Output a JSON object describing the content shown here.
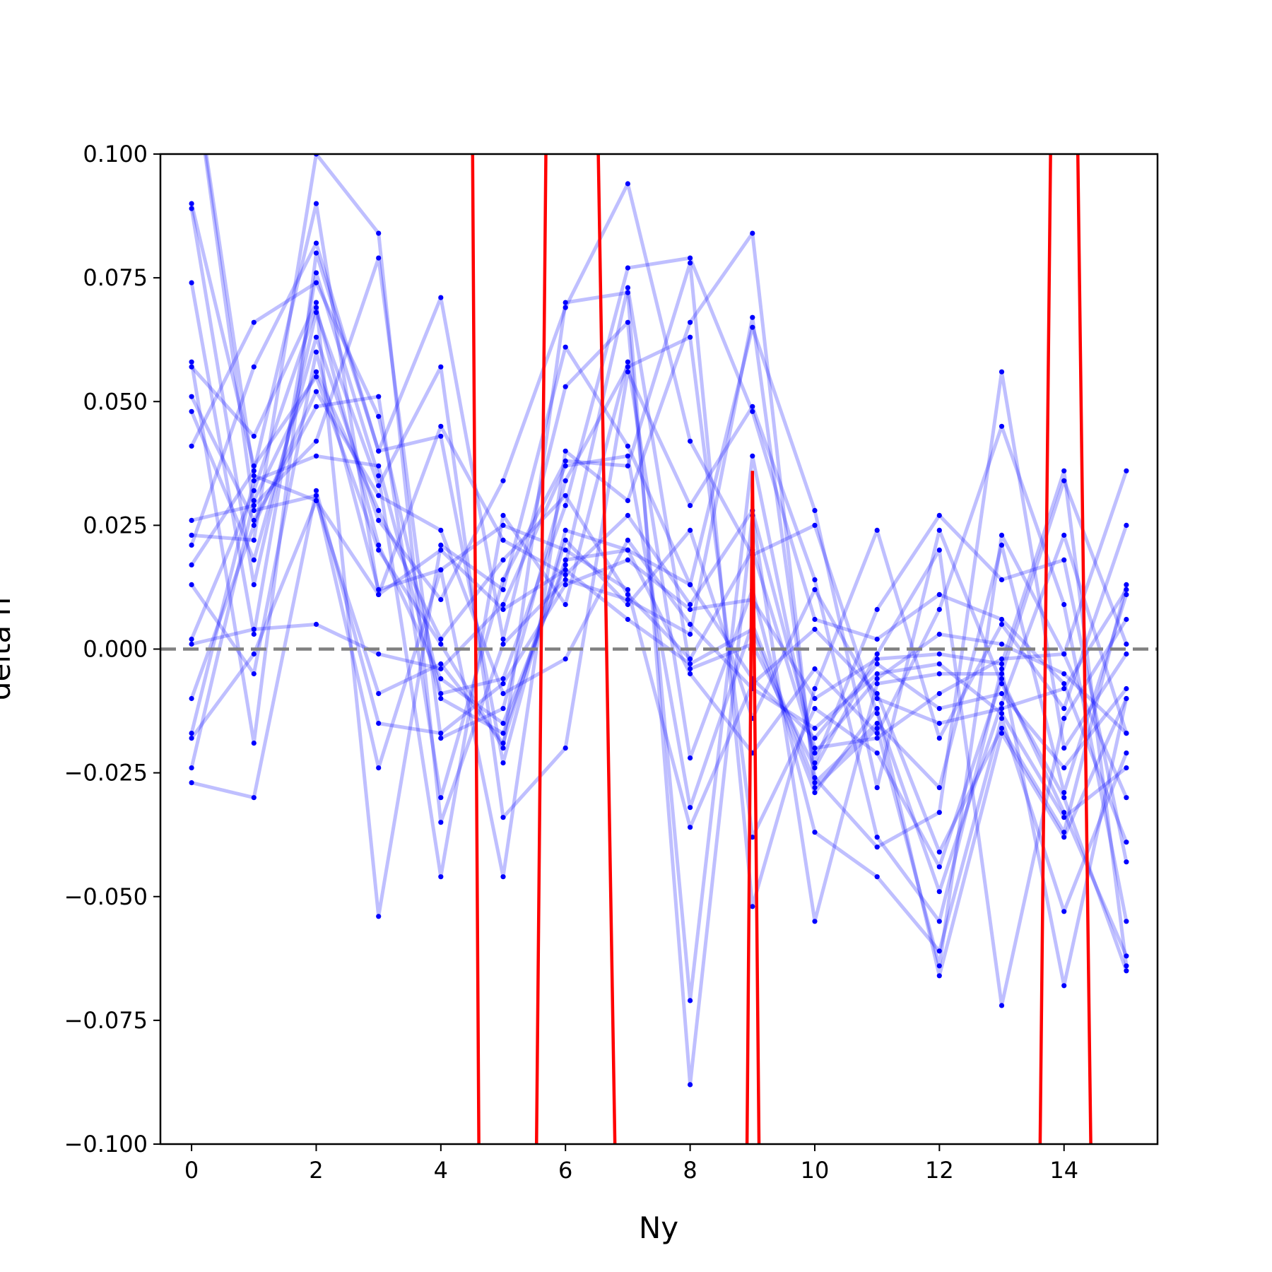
{
  "chart_data": {
    "type": "line",
    "xlabel": "Ny",
    "ylabel": "delta n",
    "xlim": [
      -0.5,
      15.5
    ],
    "ylim": [
      -0.1,
      0.1
    ],
    "x_ticks": [
      0,
      2,
      4,
      6,
      8,
      10,
      12,
      14
    ],
    "x_tick_labels": [
      "0",
      "2",
      "4",
      "6",
      "8",
      "10",
      "12",
      "14"
    ],
    "y_ticks": [
      -0.1,
      -0.075,
      -0.05,
      -0.025,
      0.0,
      0.025,
      0.05,
      0.075,
      0.1
    ],
    "y_tick_labels": [
      "−0.100",
      "−0.075",
      "−0.050",
      "−0.025",
      "0.000",
      "0.025",
      "0.050",
      "0.075",
      "0.100"
    ],
    "grid": false,
    "reference_line": {
      "y": 0.0,
      "style": "dashed",
      "color": "#808080"
    },
    "colors": {
      "series": "#0000ff",
      "highlight": "#ff0000",
      "reference": "#808080"
    },
    "x": [
      0,
      1,
      2,
      3,
      4,
      5,
      6,
      7,
      8,
      9,
      10,
      11,
      12,
      13,
      14,
      15
    ],
    "series": [
      {
        "values": [
          0.12,
          0.028,
          0.031,
          -0.024,
          0.016,
          -0.046,
          0.04,
          0.03,
          0.066,
          0.084,
          -0.028,
          -0.016,
          -0.064,
          0.023,
          -0.001,
          0.036
        ]
      },
      {
        "values": [
          0.09,
          0.037,
          0.055,
          0.02,
          0.001,
          -0.02,
          0.07,
          0.072,
          -0.088,
          0.027,
          -0.055,
          -0.007,
          -0.005,
          -0.005,
          0.034,
          0.001
        ]
      },
      {
        "values": [
          0.089,
          0.013,
          0.068,
          0.033,
          0.057,
          -0.034,
          -0.02,
          0.056,
          0.029,
          0.049,
          0.014,
          -0.038,
          -0.055,
          -0.004,
          -0.068,
          -0.01
        ]
      },
      {
        "values": [
          0.074,
          0.003,
          0.076,
          0.035,
          -0.046,
          0.027,
          0.009,
          0.058,
          -0.022,
          0.012,
          -0.037,
          -0.046,
          -0.061,
          -0.014,
          -0.053,
          -0.021
        ]
      },
      {
        "values": [
          0.058,
          -0.019,
          0.08,
          0.04,
          0.071,
          0.002,
          0.053,
          0.066,
          -0.071,
          0.039,
          -0.023,
          0.008,
          0.027,
          0.014,
          0.018,
          -0.043
        ]
      },
      {
        "values": [
          0.057,
          0.043,
          0.07,
          -0.054,
          0.021,
          0.012,
          0.061,
          0.041,
          0.013,
          0.065,
          0.028,
          -0.028,
          0.024,
          -0.007,
          -0.03,
          -0.065
        ]
      },
      {
        "values": [
          0.051,
          0.026,
          0.049,
          0.051,
          -0.03,
          0.014,
          0.038,
          0.037,
          0.078,
          -0.052,
          -0.008,
          0.024,
          -0.018,
          0.005,
          -0.012,
          0.025
        ]
      },
      {
        "values": [
          0.048,
          0.018,
          0.063,
          0.026,
          0.01,
          0.034,
          0.069,
          0.094,
          0.042,
          0.019,
          0.025,
          -0.013,
          -0.049,
          -0.011,
          0.023,
          -0.017
        ]
      },
      {
        "values": [
          0.041,
          0.066,
          0.074,
          0.047,
          -0.009,
          -0.006,
          0.029,
          0.077,
          0.079,
          0.048,
          0.006,
          0.002,
          0.011,
          0.006,
          -0.007,
          -0.039
        ]
      },
      {
        "values": [
          0.026,
          0.029,
          0.042,
          0.079,
          -0.018,
          -0.012,
          0.034,
          0.057,
          0.063,
          -0.038,
          -0.012,
          -0.021,
          -0.044,
          -0.006,
          -0.033,
          -0.062
        ]
      },
      {
        "values": [
          0.023,
          0.022,
          0.1,
          0.084,
          -0.035,
          0.001,
          0.014,
          0.01,
          0.003,
          0.067,
          -0.026,
          -0.04,
          -0.033,
          0.056,
          -0.02,
          -0.001
        ]
      },
      {
        "values": [
          0.021,
          0.057,
          0.082,
          0.04,
          0.043,
          -0.023,
          0.024,
          0.02,
          -0.005,
          -0.021,
          -0.004,
          -0.017,
          0.008,
          0.045,
          0.009,
          -0.055
        ]
      },
      {
        "values": [
          0.017,
          0.036,
          0.09,
          0.011,
          0.045,
          0.022,
          0.015,
          0.027,
          0.009,
          0.028,
          -0.02,
          -0.018,
          -0.009,
          -0.002,
          -0.001,
          -0.03
        ]
      },
      {
        "values": [
          0.013,
          -0.005,
          0.06,
          0.012,
          0.016,
          0.025,
          0.02,
          0.012,
          -0.036,
          -0.007,
          0.004,
          -0.009,
          -0.041,
          -0.016,
          -0.037,
          0.013
        ]
      },
      {
        "values": [
          0.002,
          0.032,
          0.069,
          0.021,
          -0.006,
          -0.015,
          0.017,
          0.073,
          -0.004,
          0.001,
          -0.024,
          -0.001,
          0.02,
          -0.072,
          -0.014,
          0.006
        ]
      },
      {
        "values": [
          0.001,
          0.004,
          0.005,
          -0.001,
          -0.004,
          0.009,
          0.037,
          0.039,
          -0.032,
          0.005,
          -0.027,
          -0.015,
          -0.028,
          0.021,
          -0.029,
          0.011
        ]
      },
      {
        "values": [
          -0.01,
          0.025,
          0.052,
          0.031,
          0.024,
          -0.009,
          -0.002,
          0.022,
          0.005,
          -0.008,
          -0.016,
          -0.005,
          -0.003,
          -0.013,
          -0.034,
          -0.024
        ]
      },
      {
        "values": [
          -0.017,
          0.034,
          0.039,
          0.037,
          -0.01,
          -0.017,
          0.018,
          0.02,
          0.013,
          -0.006,
          -0.018,
          -0.003,
          -0.012,
          -0.009,
          -0.024,
          -0.008
        ]
      },
      {
        "values": [
          -0.018,
          -0.001,
          0.03,
          -0.009,
          -0.003,
          -0.019,
          0.022,
          0.009,
          0.024,
          -0.014,
          0.012,
          -0.01,
          -0.015,
          -0.012,
          -0.008,
          0.012
        ]
      },
      {
        "values": [
          -0.024,
          0.03,
          0.056,
          0.028,
          0.002,
          0.018,
          0.031,
          0.011,
          -0.002,
          0.02,
          -0.021,
          -0.006,
          0.003,
          0.001,
          -0.005,
          -0.017
        ]
      },
      {
        "values": [
          -0.027,
          -0.03,
          0.032,
          -0.015,
          -0.017,
          -0.007,
          0.013,
          0.018,
          0.008,
          0.01,
          -0.01,
          -0.002,
          -0.001,
          -0.003,
          0.036,
          -0.064
        ]
      },
      {
        "values": [
          0.12,
          0.035,
          0.03,
          0.011,
          0.02,
          0.008,
          0.016,
          0.006,
          -0.003,
          0.004,
          -0.029,
          -0.012,
          -0.066,
          -0.017,
          -0.038,
          -0.01
        ]
      }
    ],
    "highlight_series": {
      "x": [
        4.5,
        4.62,
        5.52,
        5.7,
        6.5,
        6.82,
        8.9,
        9.0,
        9.12,
        13.6,
        13.8,
        14.2,
        14.45
      ],
      "values": [
        0.12,
        -0.12,
        -0.12,
        0.12,
        0.12,
        -0.12,
        -0.12,
        0.036,
        -0.12,
        -0.12,
        0.12,
        0.12,
        -0.12
      ]
    }
  }
}
